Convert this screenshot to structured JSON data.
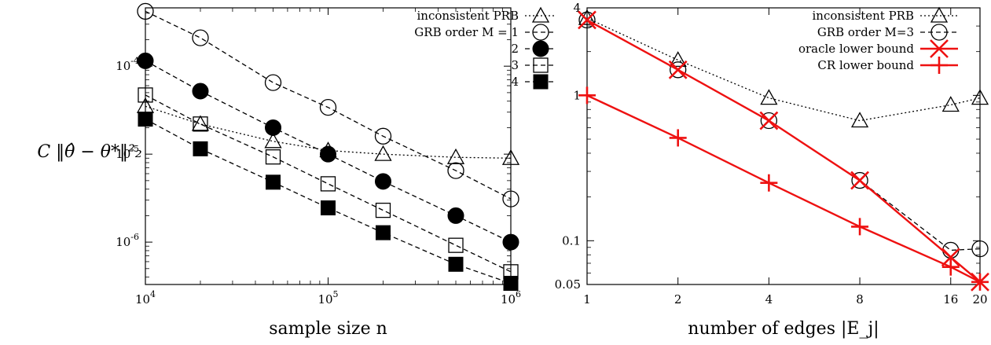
{
  "chart_data": [
    {
      "type": "line",
      "xscale": "log",
      "yscale": "log",
      "xlim": [
        10000,
        1000000
      ],
      "ylim": [
        3.3e-07,
        0.00046
      ],
      "xlabel": "sample size n",
      "ylabel": "C ‖θ̂ − θ*‖²₂",
      "xticks": [
        {
          "value": 10000,
          "base": "10",
          "exp": "4"
        },
        {
          "value": 100000,
          "base": "10",
          "exp": "5"
        },
        {
          "value": 1000000,
          "base": "10",
          "exp": "6"
        }
      ],
      "yticks": [
        {
          "value": 1e-06,
          "base": "10",
          "exp": "-6"
        },
        {
          "value": 1e-05,
          "base": "10",
          "exp": "-5"
        },
        {
          "value": 0.0001,
          "base": "10",
          "exp": "-4"
        }
      ],
      "legend_position": "top-right",
      "grid": false,
      "series": [
        {
          "name": "inconsistent PRB",
          "marker": "triangle-open",
          "dash": "dotted",
          "color": "#000000",
          "x": [
            10000,
            20000,
            50000,
            100000,
            200000,
            500000,
            1000000
          ],
          "y": [
            3.5e-05,
            2.2e-05,
            1.4e-05,
            1.1e-05,
            1e-05,
            9.2e-06,
            9e-06
          ]
        },
        {
          "name": "GRB order M = 1",
          "marker": "circle-open",
          "dash": "dashed",
          "color": "#000000",
          "x": [
            10000,
            20000,
            50000,
            100000,
            200000,
            500000,
            1000000
          ],
          "y": [
            0.00042,
            0.00021,
            6.5e-05,
            3.4e-05,
            1.6e-05,
            6.5e-06,
            3.1e-06
          ]
        },
        {
          "name": "2",
          "marker": "circle-filled",
          "dash": "dashed",
          "color": "#000000",
          "x": [
            10000,
            20000,
            50000,
            100000,
            200000,
            500000,
            1000000
          ],
          "y": [
            0.000115,
            5.2e-05,
            2e-05,
            1e-05,
            4.9e-06,
            2e-06,
            1e-06
          ]
        },
        {
          "name": "3",
          "marker": "square-open",
          "dash": "dashed",
          "color": "#000000",
          "x": [
            10000,
            20000,
            50000,
            100000,
            200000,
            500000,
            1000000
          ],
          "y": [
            4.7e-05,
            2.2e-05,
            9.3e-06,
            4.6e-06,
            2.3e-06,
            9.2e-07,
            4.6e-07
          ]
        },
        {
          "name": "4",
          "marker": "square-filled",
          "dash": "dashed",
          "color": "#000000",
          "x": [
            10000,
            20000,
            50000,
            100000,
            200000,
            500000,
            1000000
          ],
          "y": [
            2.5e-05,
            1.15e-05,
            4.8e-06,
            2.45e-06,
            1.28e-06,
            5.6e-07,
            3.4e-07
          ]
        }
      ]
    },
    {
      "type": "line",
      "xscale": "log",
      "yscale": "log",
      "xlim": [
        1,
        20
      ],
      "ylim": [
        0.05,
        4
      ],
      "xlabel": "number of edges |E_j|",
      "ylabel": "",
      "xticks": [
        {
          "value": 1,
          "label": "1"
        },
        {
          "value": 2,
          "label": "2"
        },
        {
          "value": 4,
          "label": "4"
        },
        {
          "value": 8,
          "label": "8"
        },
        {
          "value": 16,
          "label": "16"
        },
        {
          "value": 20,
          "label": "20"
        }
      ],
      "yticks": [
        {
          "value": 0.05,
          "label": "0.05"
        },
        {
          "value": 0.1,
          "label": "0.1"
        },
        {
          "value": 1,
          "label": "1"
        },
        {
          "value": 4,
          "label": "4"
        }
      ],
      "legend_position": "top-right",
      "grid": false,
      "series": [
        {
          "name": "inconsistent PRB",
          "marker": "triangle-open",
          "dash": "dotted",
          "color": "#000000",
          "x": [
            1,
            2,
            4,
            8,
            16,
            20
          ],
          "y": [
            3.4,
            1.75,
            0.96,
            0.67,
            0.86,
            0.96
          ]
        },
        {
          "name": "GRB order M=3",
          "marker": "circle-open",
          "dash": "dashed",
          "color": "#000000",
          "x": [
            1,
            2,
            4,
            8,
            16,
            20
          ],
          "y": [
            3.3,
            1.5,
            0.67,
            0.26,
            0.086,
            0.088
          ]
        },
        {
          "name": "oracle lower bound",
          "marker": "x",
          "dash": "solid",
          "color": "#ee1111",
          "x": [
            1,
            2,
            4,
            8,
            16,
            20
          ],
          "y": [
            3.3,
            1.5,
            0.67,
            0.26,
            0.077,
            0.052
          ]
        },
        {
          "name": "CR lower bound",
          "marker": "plus",
          "dash": "solid",
          "color": "#ee1111",
          "x": [
            1,
            2,
            4,
            8,
            16,
            20
          ],
          "y": [
            1.0,
            0.51,
            0.25,
            0.125,
            0.066,
            0.052
          ]
        }
      ]
    }
  ]
}
